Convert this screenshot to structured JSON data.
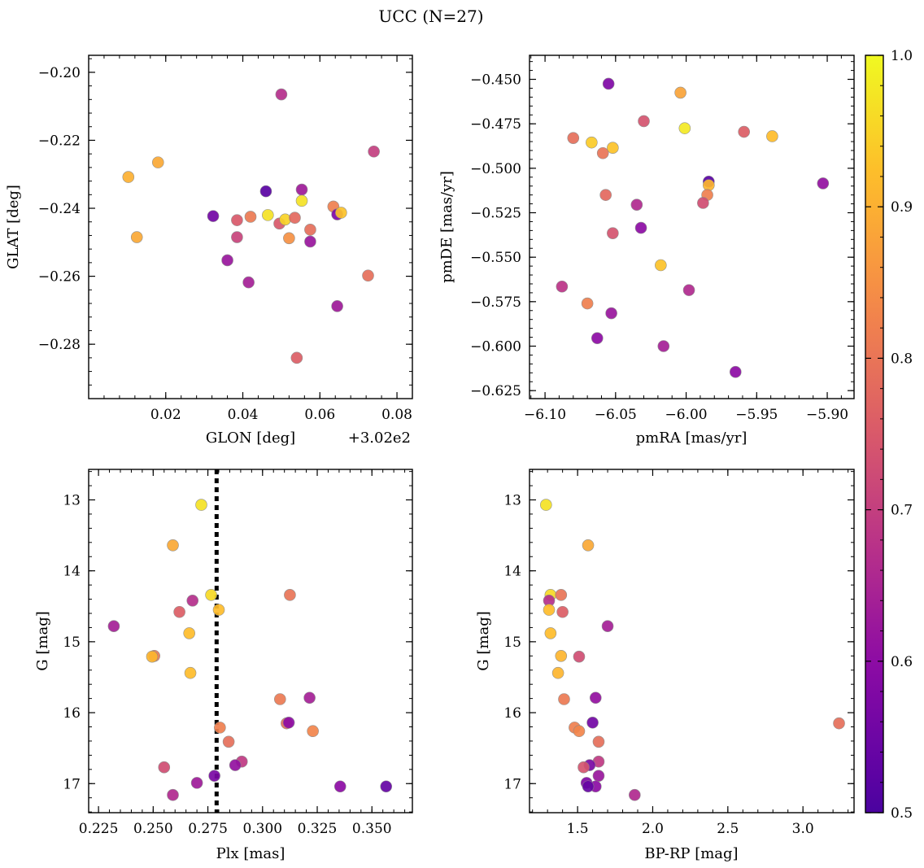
{
  "figure_title": "UCC (N=27)",
  "colorbar": {
    "vmin": 0.5,
    "vmax": 1.0,
    "ticks": [
      "0.5",
      "0.6",
      "0.7",
      "0.8",
      "0.9",
      "1.0"
    ],
    "tick_values": [
      0.5,
      0.6,
      0.7,
      0.8,
      0.9,
      1.0
    ]
  },
  "chart_data": [
    {
      "type": "scatter",
      "name": "glon-glat",
      "xlabel": "GLON [deg]",
      "ylabel": "GLAT [deg]",
      "offset_label": "+3.02e2",
      "xlim": [
        0.0,
        0.084
      ],
      "ylim": [
        -0.296,
        -0.195
      ],
      "xticks": [
        0.02,
        0.04,
        0.06,
        0.08
      ],
      "xtick_labels": [
        "0.02",
        "0.04",
        "0.06",
        "0.08"
      ],
      "yticks": [
        -0.2,
        -0.22,
        -0.24,
        -0.26,
        -0.28
      ],
      "ytick_labels": [
        "−0.20",
        "−0.22",
        "−0.24",
        "−0.26",
        "−0.28"
      ],
      "x": [
        0.05,
        0.074,
        0.018,
        0.0103,
        0.0553,
        0.046,
        0.0553,
        0.0323,
        0.0635,
        0.0645,
        0.0655,
        0.0385,
        0.042,
        0.0465,
        0.0495,
        0.051,
        0.0535,
        0.0575,
        0.0575,
        0.0125,
        0.0385,
        0.052,
        0.036,
        0.0415,
        0.0725,
        0.0645,
        0.054
      ],
      "y": [
        -0.2065,
        -0.2233,
        -0.2265,
        -0.2308,
        -0.2345,
        -0.235,
        -0.2378,
        -0.2423,
        -0.2395,
        -0.2418,
        -0.2413,
        -0.2435,
        -0.2425,
        -0.242,
        -0.2445,
        -0.2433,
        -0.2428,
        -0.2463,
        -0.2498,
        -0.2485,
        -0.2485,
        -0.2488,
        -0.2553,
        -0.2618,
        -0.2598,
        -0.2688,
        -0.284
      ],
      "c": [
        0.67,
        0.7,
        0.89,
        0.9,
        0.63,
        0.52,
        0.97,
        0.56,
        0.82,
        0.58,
        0.93,
        0.75,
        0.81,
        0.97,
        0.75,
        0.95,
        0.78,
        0.79,
        0.62,
        0.89,
        0.71,
        0.85,
        0.62,
        0.64,
        0.79,
        0.63,
        0.76
      ]
    },
    {
      "type": "scatter",
      "name": "pmra-pmde",
      "xlabel": "pmRA [mas/yr]",
      "ylabel": "pmDE [mas/yr]",
      "xlim": [
        -6.111,
        -5.881
      ],
      "ylim": [
        -0.6295,
        -0.4365
      ],
      "xticks": [
        -6.1,
        -6.05,
        -6.0,
        -5.95,
        -5.9
      ],
      "xtick_labels": [
        "−6.10",
        "−6.05",
        "−6.00",
        "−5.95",
        "−5.90"
      ],
      "yticks": [
        -0.45,
        -0.475,
        -0.5,
        -0.525,
        -0.55,
        -0.575,
        -0.6,
        -0.625
      ],
      "ytick_labels": [
        "−0.450",
        "−0.475",
        "−0.500",
        "−0.525",
        "−0.550",
        "−0.575",
        "−0.600",
        "−0.625"
      ],
      "x": [
        -6.055,
        -6.004,
        -6.03,
        -6.001,
        -5.959,
        -5.939,
        -6.08,
        -6.067,
        -6.052,
        -6.059,
        -5.984,
        -5.984,
        -5.903,
        -6.057,
        -5.985,
        -6.035,
        -5.988,
        -6.052,
        -6.032,
        -6.018,
        -6.088,
        -6.07,
        -5.998,
        -6.053,
        -6.063,
        -6.016,
        -5.965
      ],
      "y": [
        -0.4525,
        -0.4575,
        -0.4735,
        -0.4775,
        -0.4795,
        -0.482,
        -0.483,
        -0.4855,
        -0.4885,
        -0.4915,
        -0.5075,
        -0.5095,
        -0.5085,
        -0.515,
        -0.515,
        -0.5205,
        -0.5195,
        -0.5365,
        -0.5335,
        -0.5545,
        -0.5665,
        -0.576,
        -0.5685,
        -0.5815,
        -0.5955,
        -0.6,
        -0.6145
      ],
      "c": [
        0.58,
        0.88,
        0.74,
        0.98,
        0.76,
        0.92,
        0.79,
        0.94,
        0.93,
        0.8,
        0.52,
        0.91,
        0.61,
        0.78,
        0.82,
        0.66,
        0.73,
        0.74,
        0.6,
        0.93,
        0.68,
        0.82,
        0.66,
        0.62,
        0.6,
        0.64,
        0.6
      ]
    },
    {
      "type": "scatter",
      "name": "plx-g",
      "xlabel": "Plx [mas]",
      "ylabel": "G [mag]",
      "xlim": [
        0.2205,
        0.3685
      ],
      "ylim": [
        17.41,
        12.57
      ],
      "invert_y": true,
      "vline_x": 0.279,
      "xticks": [
        0.225,
        0.25,
        0.275,
        0.3,
        0.325,
        0.35
      ],
      "xtick_labels": [
        "0.225",
        "0.250",
        "0.275",
        "0.300",
        "0.325",
        "0.350"
      ],
      "yticks": [
        13,
        14,
        15,
        16,
        17
      ],
      "ytick_labels": [
        "13",
        "14",
        "15",
        "16",
        "17"
      ],
      "x": [
        0.272,
        0.259,
        0.2765,
        0.3125,
        0.268,
        0.28,
        0.262,
        0.232,
        0.2665,
        0.2505,
        0.2495,
        0.267,
        0.308,
        0.3215,
        0.311,
        0.312,
        0.2805,
        0.323,
        0.2845,
        0.2905,
        0.2875,
        0.255,
        0.278,
        0.27,
        0.3355,
        0.259,
        0.3565
      ],
      "y": [
        13.07,
        13.64,
        14.34,
        14.34,
        14.42,
        14.55,
        14.58,
        14.78,
        14.88,
        15.2,
        15.21,
        15.44,
        15.81,
        15.79,
        16.15,
        16.14,
        16.21,
        16.26,
        16.41,
        16.69,
        16.74,
        16.77,
        16.89,
        16.99,
        17.04,
        17.16,
        17.04
      ],
      "c": [
        0.97,
        0.89,
        0.96,
        0.8,
        0.67,
        0.92,
        0.76,
        0.64,
        0.92,
        0.81,
        0.91,
        0.92,
        0.81,
        0.64,
        0.79,
        0.6,
        0.82,
        0.83,
        0.79,
        0.69,
        0.61,
        0.73,
        0.57,
        0.63,
        0.6,
        0.66,
        0.54
      ]
    },
    {
      "type": "scatter",
      "name": "bprp-g",
      "xlabel": "BP-RP [mag]",
      "ylabel": "G [mag]",
      "xlim": [
        1.18,
        3.34
      ],
      "ylim": [
        17.41,
        12.57
      ],
      "invert_y": true,
      "xticks": [
        1.5,
        2.0,
        2.5,
        3.0
      ],
      "xtick_labels": [
        "1.5",
        "2.0",
        "2.5",
        "3.0"
      ],
      "yticks": [
        13,
        14,
        15,
        16,
        17
      ],
      "ytick_labels": [
        "13",
        "14",
        "15",
        "16",
        "17"
      ],
      "x": [
        1.29,
        1.57,
        1.32,
        1.39,
        1.31,
        1.31,
        1.4,
        1.7,
        1.32,
        1.39,
        1.51,
        1.37,
        1.41,
        1.62,
        1.6,
        3.24,
        1.48,
        1.51,
        1.64,
        1.64,
        1.58,
        1.54,
        1.64,
        1.56,
        1.62,
        1.57,
        1.88
      ],
      "y": [
        13.07,
        13.64,
        14.34,
        14.34,
        14.42,
        14.55,
        14.58,
        14.78,
        14.88,
        15.2,
        15.21,
        15.44,
        15.81,
        15.79,
        16.14,
        16.15,
        16.21,
        16.26,
        16.41,
        16.69,
        16.74,
        16.77,
        16.89,
        16.99,
        17.04,
        17.04,
        17.16
      ],
      "c": [
        0.97,
        0.89,
        0.96,
        0.8,
        0.67,
        0.92,
        0.76,
        0.64,
        0.92,
        0.91,
        0.73,
        0.91,
        0.81,
        0.61,
        0.56,
        0.79,
        0.82,
        0.83,
        0.79,
        0.69,
        0.57,
        0.74,
        0.62,
        0.58,
        0.6,
        0.54,
        0.66
      ]
    }
  ]
}
